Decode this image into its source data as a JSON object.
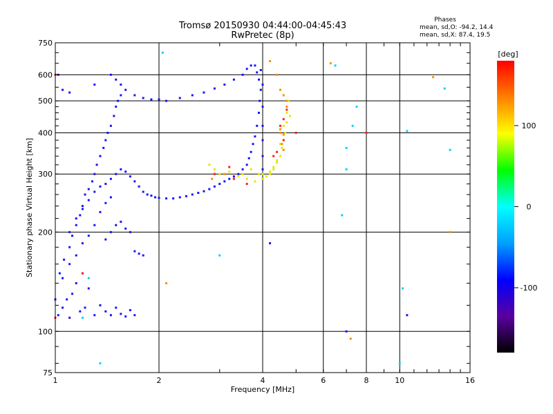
{
  "chart_data": {
    "type": "scatter",
    "title": "Tromsø 20150930 04:44:00-04:45:43",
    "subtitle": "RwPretec (8p)",
    "xlabel": "Frequency [MHz]",
    "ylabel": "Stationary phase Virtual Height [km]",
    "x_scale": "log",
    "y_scale": "log",
    "xlim": [
      1,
      16
    ],
    "ylim": [
      75,
      750
    ],
    "x_ticks": [
      1,
      2,
      4,
      6,
      8,
      10,
      16
    ],
    "x_tick_labels": [
      "1",
      "2",
      "4",
      "6",
      "8",
      "10",
      "16"
    ],
    "y_ticks": [
      75,
      100,
      200,
      300,
      400,
      500,
      600,
      750
    ],
    "y_tick_labels": [
      "75",
      "100",
      "200",
      "300",
      "400",
      "500",
      "600",
      "750"
    ],
    "grid": true,
    "stats_title": "Phases",
    "stats_o": "mean, sd,O: -94.2, 14.4",
    "stats_x": "mean, sd,X:  87.4, 19.5",
    "colorbar": {
      "label": "[deg]",
      "range": [
        -180,
        180
      ],
      "ticks": [
        100,
        0,
        -100
      ],
      "tick_labels": [
        "100",
        "0",
        "-100"
      ],
      "colors": [
        "#000000",
        "#5a00a0",
        "#0000ff",
        "#00a0ff",
        "#00ffff",
        "#00ff00",
        "#ffff00",
        "#ff8000",
        "#ff0000"
      ]
    },
    "series": [
      {
        "points": [
          [
            1.02,
            112
          ],
          [
            1.05,
            118
          ],
          [
            1.08,
            125
          ],
          [
            1.1,
            110
          ],
          [
            1.12,
            130
          ],
          [
            1.15,
            140
          ],
          [
            1.18,
            115
          ],
          [
            1.2,
            150
          ],
          [
            1.22,
            118
          ],
          [
            1.25,
            135
          ],
          [
            1.3,
            112
          ],
          [
            1.35,
            120
          ],
          [
            1.4,
            115
          ],
          [
            1.45,
            112
          ],
          [
            1.5,
            118
          ],
          [
            1.55,
            113
          ],
          [
            1.6,
            111
          ],
          [
            1.65,
            116
          ],
          [
            1.7,
            112
          ],
          [
            1.03,
            150
          ],
          [
            1.06,
            165
          ],
          [
            1.1,
            180
          ],
          [
            1.12,
            195
          ],
          [
            1.15,
            210
          ],
          [
            1.18,
            225
          ],
          [
            1.2,
            240
          ],
          [
            1.22,
            260
          ],
          [
            1.25,
            270
          ],
          [
            1.28,
            285
          ],
          [
            1.3,
            300
          ],
          [
            1.32,
            320
          ],
          [
            1.35,
            340
          ],
          [
            1.38,
            360
          ],
          [
            1.4,
            380
          ],
          [
            1.42,
            400
          ],
          [
            1.45,
            420
          ],
          [
            1.48,
            450
          ],
          [
            1.5,
            480
          ],
          [
            1.52,
            500
          ],
          [
            1.55,
            520
          ],
          [
            1.1,
            200
          ],
          [
            1.15,
            220
          ],
          [
            1.2,
            235
          ],
          [
            1.25,
            250
          ],
          [
            1.3,
            265
          ],
          [
            1.35,
            275
          ],
          [
            1.4,
            280
          ],
          [
            1.45,
            290
          ],
          [
            1.5,
            300
          ],
          [
            1.55,
            310
          ],
          [
            1.6,
            305
          ],
          [
            1.65,
            295
          ],
          [
            1.7,
            285
          ],
          [
            1.75,
            275
          ],
          [
            1.8,
            265
          ],
          [
            1.85,
            260
          ],
          [
            1.9,
            258
          ],
          [
            1.95,
            255
          ],
          [
            2.0,
            254
          ],
          [
            2.1,
            253
          ],
          [
            2.2,
            253
          ],
          [
            2.3,
            255
          ],
          [
            2.4,
            257
          ],
          [
            2.5,
            260
          ],
          [
            2.6,
            263
          ],
          [
            2.7,
            266
          ],
          [
            2.8,
            270
          ],
          [
            2.9,
            275
          ],
          [
            3.0,
            280
          ],
          [
            3.1,
            285
          ],
          [
            3.2,
            290
          ],
          [
            3.3,
            295
          ],
          [
            3.4,
            300
          ],
          [
            3.5,
            310
          ],
          [
            3.6,
            320
          ],
          [
            3.65,
            335
          ],
          [
            3.7,
            350
          ],
          [
            3.75,
            370
          ],
          [
            3.8,
            390
          ],
          [
            3.85,
            420
          ],
          [
            3.9,
            460
          ],
          [
            3.92,
            500
          ],
          [
            3.95,
            540
          ],
          [
            3.9,
            580
          ],
          [
            3.85,
            610
          ],
          [
            1.4,
            190
          ],
          [
            1.45,
            200
          ],
          [
            1.5,
            210
          ],
          [
            1.55,
            215
          ],
          [
            1.6,
            205
          ],
          [
            1.65,
            200
          ],
          [
            1.7,
            175
          ],
          [
            1.75,
            172
          ],
          [
            1.8,
            170
          ],
          [
            1.35,
            230
          ],
          [
            1.4,
            245
          ],
          [
            1.45,
            255
          ],
          [
            1.3,
            210
          ],
          [
            1.25,
            195
          ],
          [
            1.2,
            185
          ],
          [
            1.15,
            170
          ],
          [
            1.1,
            160
          ],
          [
            1.05,
            145
          ],
          [
            1.0,
            125
          ],
          [
            1.02,
            600
          ],
          [
            1.05,
            540
          ],
          [
            1.1,
            530
          ],
          [
            1.3,
            560
          ],
          [
            1.45,
            600
          ],
          [
            1.5,
            580
          ],
          [
            1.55,
            560
          ],
          [
            1.6,
            540
          ],
          [
            1.7,
            520
          ],
          [
            1.8,
            510
          ],
          [
            1.9,
            505
          ],
          [
            2.0,
            505
          ],
          [
            2.1,
            500
          ],
          [
            2.3,
            510
          ],
          [
            2.5,
            520
          ],
          [
            2.7,
            530
          ],
          [
            2.9,
            545
          ],
          [
            3.1,
            560
          ],
          [
            3.3,
            580
          ],
          [
            3.5,
            600
          ],
          [
            3.6,
            625
          ],
          [
            3.7,
            640
          ],
          [
            3.8,
            640
          ],
          [
            3.95,
            620
          ],
          [
            4.0,
            560
          ],
          [
            4.0,
            480
          ],
          [
            4.0,
            420
          ],
          [
            4.0,
            380
          ],
          [
            4.0,
            340
          ],
          [
            4.0,
            310
          ],
          [
            4.0,
            290
          ],
          [
            7.0,
            100
          ],
          [
            4.2,
            185
          ],
          [
            10.5,
            112
          ]
        ]
      },
      {
        "points": [
          [
            3.0,
            300
          ],
          [
            3.2,
            305
          ],
          [
            3.4,
            295
          ],
          [
            3.6,
            290
          ],
          [
            3.8,
            285
          ],
          [
            4.0,
            290
          ],
          [
            4.1,
            295
          ],
          [
            4.2,
            300
          ],
          [
            4.3,
            310
          ],
          [
            4.4,
            325
          ],
          [
            4.5,
            340
          ],
          [
            4.55,
            360
          ],
          [
            4.6,
            380
          ],
          [
            4.65,
            400
          ],
          [
            4.7,
            430
          ],
          [
            4.7,
            460
          ],
          [
            4.75,
            500
          ],
          [
            4.6,
            420
          ],
          [
            4.5,
            370
          ],
          [
            4.3,
            315
          ],
          [
            3.9,
            300
          ],
          [
            3.7,
            310
          ],
          [
            3.5,
            300
          ],
          [
            2.8,
            320
          ],
          [
            2.9,
            310
          ],
          [
            4.8,
            450
          ],
          [
            4.4,
            330
          ],
          [
            4.2,
            305
          ],
          [
            4.0,
            300
          ],
          [
            4.7,
            480
          ]
        ]
      },
      {
        "points": [
          [
            4.2,
            660
          ],
          [
            4.4,
            600
          ],
          [
            4.5,
            540
          ],
          [
            4.6,
            520
          ],
          [
            4.7,
            480
          ],
          [
            4.5,
            410
          ],
          [
            4.6,
            395
          ],
          [
            4.55,
            370
          ],
          [
            4.6,
            355
          ],
          [
            3.1,
            300
          ],
          [
            2.85,
            290
          ],
          [
            4.7,
            500
          ],
          [
            4.5,
            400
          ],
          [
            14.0,
            200
          ],
          [
            12.5,
            590
          ],
          [
            2.1,
            140
          ],
          [
            7.2,
            95
          ],
          [
            6.3,
            650
          ]
        ]
      },
      {
        "points": [
          [
            4.5,
            420
          ],
          [
            4.6,
            380
          ],
          [
            4.4,
            350
          ],
          [
            4.3,
            340
          ],
          [
            3.6,
            280
          ],
          [
            3.3,
            290
          ],
          [
            3.2,
            315
          ],
          [
            4.7,
            470
          ],
          [
            4.6,
            440
          ],
          [
            2.9,
            300
          ],
          [
            1.2,
            150
          ],
          [
            1.0,
            600
          ],
          [
            1.0,
            110
          ],
          [
            5.0,
            400
          ],
          [
            8.0,
            400
          ]
        ]
      },
      {
        "points": [
          [
            7.0,
            310
          ],
          [
            7.0,
            360
          ],
          [
            7.5,
            480
          ],
          [
            7.3,
            420
          ],
          [
            10.5,
            405
          ],
          [
            10.2,
            135
          ],
          [
            13.5,
            545
          ],
          [
            6.5,
            640
          ],
          [
            1.35,
            80
          ],
          [
            10.0,
            80
          ],
          [
            1.2,
            110
          ],
          [
            1.25,
            145
          ],
          [
            2.05,
            700
          ],
          [
            3.0,
            170
          ],
          [
            14.0,
            355
          ],
          [
            6.8,
            225
          ]
        ]
      }
    ]
  }
}
